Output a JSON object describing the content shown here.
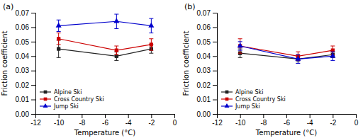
{
  "chart_data": [
    {
      "type": "line",
      "title": "(a)",
      "x": [
        -10,
        -5,
        -2
      ],
      "xlabel": "Temperature (°C)",
      "ylabel": "Friction coefficient",
      "xlim": [
        -12,
        0
      ],
      "xticks": [
        -12,
        -10,
        -8,
        -6,
        -4,
        -2,
        0
      ],
      "ylim": [
        0.0,
        0.07
      ],
      "yticks": [
        {
          "value": 0,
          "label": "0.00"
        },
        0.01,
        0.02,
        0.03,
        0.04,
        0.05,
        0.06,
        0.07
      ],
      "legend": "lower left",
      "series": [
        {
          "name": "Alpine Ski",
          "color": "#222222",
          "marker": "square",
          "values": [
            0.045,
            0.04,
            0.045
          ],
          "errors": [
            0.006,
            0.003,
            0.003
          ]
        },
        {
          "name": "Cross Country Ski",
          "color": "#cc0000",
          "marker": "square",
          "values": [
            0.052,
            0.044,
            0.048
          ],
          "errors": [
            0.004,
            0.003,
            0.004
          ]
        },
        {
          "name": "Jump Ski",
          "color": "#0000cc",
          "marker": "triangle",
          "values": [
            0.061,
            0.064,
            0.061
          ],
          "errors": [
            0.004,
            0.005,
            0.005
          ]
        }
      ]
    },
    {
      "type": "line",
      "title": "(b)",
      "x": [
        -10,
        -5,
        -2
      ],
      "xlabel": "Temperature (°C)",
      "ylabel": "Friction coefficient",
      "xlim": [
        -12,
        0
      ],
      "xticks": [
        -12,
        -10,
        -8,
        -6,
        -4,
        -2,
        0
      ],
      "ylim": [
        0.0,
        0.07
      ],
      "yticks": [
        {
          "value": 0,
          "label": "0.00"
        },
        0.01,
        0.02,
        0.03,
        0.04,
        0.05,
        0.06,
        0.07
      ],
      "legend": "lower left",
      "series": [
        {
          "name": "Alpine Ski",
          "color": "#222222",
          "marker": "square",
          "values": [
            0.042,
            0.038,
            0.041
          ],
          "errors": [
            0.003,
            0.002,
            0.002
          ]
        },
        {
          "name": "Cross Country Ski",
          "color": "#cc0000",
          "marker": "square",
          "values": [
            0.047,
            0.04,
            0.044
          ],
          "errors": [
            0.005,
            0.003,
            0.003
          ]
        },
        {
          "name": "Jump Ski",
          "color": "#0000cc",
          "marker": "triangle",
          "values": [
            0.047,
            0.038,
            0.04
          ],
          "errors": [
            0.003,
            0.003,
            0.003
          ]
        }
      ]
    }
  ]
}
